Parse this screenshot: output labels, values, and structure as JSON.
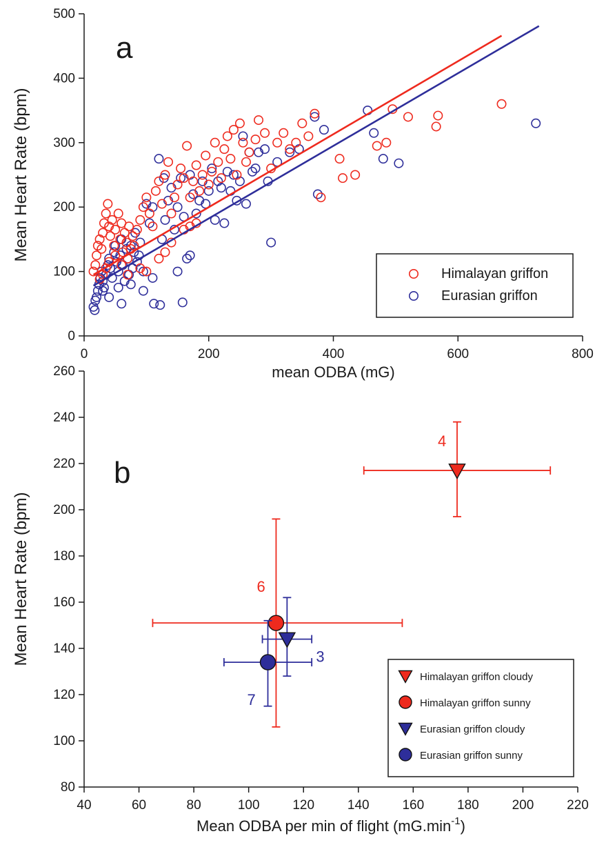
{
  "colors": {
    "red": "#ee2a1e",
    "blue": "#2e2e9a",
    "axis": "#1a1a1a"
  },
  "chart_data": [
    {
      "panel_label": "a",
      "type": "scatter",
      "xlabel": "mean ODBA (mG)",
      "ylabel": "Mean Heart Rate (bpm)",
      "xlim": [
        0,
        800
      ],
      "ylim": [
        0,
        500
      ],
      "xticks": [
        0,
        200,
        400,
        600,
        800
      ],
      "yticks": [
        0,
        100,
        200,
        300,
        400,
        500
      ],
      "legend": {
        "placement": "bottom-right"
      },
      "series": [
        {
          "name": "Himalayan griffon",
          "color": "#ee2a1e",
          "marker": "open-circle",
          "fit_line": {
            "x": [
              15,
              670
            ],
            "y": [
              95,
              466
            ]
          },
          "points": [
            [
              15,
              100
            ],
            [
              18,
              110
            ],
            [
              20,
              125
            ],
            [
              22,
              140
            ],
            [
              25,
              150
            ],
            [
              28,
              135
            ],
            [
              30,
              160
            ],
            [
              32,
              175
            ],
            [
              35,
              190
            ],
            [
              38,
              205
            ],
            [
              40,
              170
            ],
            [
              42,
              155
            ],
            [
              45,
              180
            ],
            [
              48,
              140
            ],
            [
              50,
              165
            ],
            [
              55,
              190
            ],
            [
              58,
              150
            ],
            [
              60,
              175
            ],
            [
              62,
              130
            ],
            [
              65,
              160
            ],
            [
              68,
              145
            ],
            [
              70,
              120
            ],
            [
              72,
              170
            ],
            [
              75,
              135
            ],
            [
              78,
              155
            ],
            [
              80,
              140
            ],
            [
              85,
              165
            ],
            [
              90,
              180
            ],
            [
              95,
              200
            ],
            [
              100,
              215
            ],
            [
              105,
              190
            ],
            [
              110,
              170
            ],
            [
              115,
              225
            ],
            [
              120,
              240
            ],
            [
              125,
              205
            ],
            [
              130,
              250
            ],
            [
              135,
              270
            ],
            [
              140,
              190
            ],
            [
              145,
              215
            ],
            [
              150,
              235
            ],
            [
              155,
              260
            ],
            [
              160,
              245
            ],
            [
              165,
              295
            ],
            [
              170,
              215
            ],
            [
              175,
              240
            ],
            [
              180,
              265
            ],
            [
              185,
              225
            ],
            [
              190,
              250
            ],
            [
              195,
              280
            ],
            [
              200,
              235
            ],
            [
              205,
              255
            ],
            [
              210,
              300
            ],
            [
              215,
              270
            ],
            [
              220,
              245
            ],
            [
              225,
              290
            ],
            [
              230,
              310
            ],
            [
              235,
              275
            ],
            [
              240,
              320
            ],
            [
              245,
              250
            ],
            [
              250,
              330
            ],
            [
              255,
              300
            ],
            [
              260,
              270
            ],
            [
              265,
              285
            ],
            [
              275,
              305
            ],
            [
              280,
              335
            ],
            [
              290,
              315
            ],
            [
              300,
              260
            ],
            [
              310,
              300
            ],
            [
              320,
              315
            ],
            [
              330,
              290
            ],
            [
              340,
              300
            ],
            [
              350,
              330
            ],
            [
              360,
              310
            ],
            [
              370,
              345
            ],
            [
              380,
              215
            ],
            [
              410,
              275
            ],
            [
              415,
              245
            ],
            [
              435,
              250
            ],
            [
              470,
              295
            ],
            [
              485,
              300
            ],
            [
              495,
              352
            ],
            [
              520,
              340
            ],
            [
              565,
              325
            ],
            [
              568,
              342
            ],
            [
              670,
              360
            ],
            [
              120,
              120
            ],
            [
              100,
              100
            ],
            [
              90,
              105
            ],
            [
              130,
              130
            ],
            [
              140,
              145
            ],
            [
              160,
              165
            ],
            [
              170,
              170
            ],
            [
              180,
              175
            ],
            [
              70,
              95
            ],
            [
              60,
              110
            ],
            [
              50,
              125
            ],
            [
              40,
              115
            ],
            [
              35,
              105
            ],
            [
              30,
              95
            ],
            [
              25,
              88
            ]
          ]
        },
        {
          "name": "Eurasian griffon",
          "color": "#2e2e9a",
          "marker": "open-circle",
          "fit_line": {
            "x": [
              15,
              730
            ],
            "y": [
              78,
              481
            ]
          },
          "points": [
            [
              15,
              45
            ],
            [
              17,
              40
            ],
            [
              18,
              55
            ],
            [
              20,
              60
            ],
            [
              22,
              70
            ],
            [
              24,
              80
            ],
            [
              26,
              90
            ],
            [
              28,
              100
            ],
            [
              30,
              85
            ],
            [
              32,
              75
            ],
            [
              35,
              95
            ],
            [
              38,
              110
            ],
            [
              40,
              120
            ],
            [
              42,
              105
            ],
            [
              45,
              90
            ],
            [
              48,
              130
            ],
            [
              50,
              140
            ],
            [
              52,
              115
            ],
            [
              55,
              100
            ],
            [
              58,
              125
            ],
            [
              60,
              150
            ],
            [
              62,
              110
            ],
            [
              65,
              85
            ],
            [
              68,
              135
            ],
            [
              70,
              120
            ],
            [
              72,
              95
            ],
            [
              75,
              140
            ],
            [
              78,
              105
            ],
            [
              80,
              130
            ],
            [
              82,
              160
            ],
            [
              85,
              115
            ],
            [
              88,
              125
            ],
            [
              90,
              145
            ],
            [
              95,
              100
            ],
            [
              100,
              205
            ],
            [
              105,
              175
            ],
            [
              110,
              200
            ],
            [
              112,
              50
            ],
            [
              120,
              275
            ],
            [
              122,
              48
            ],
            [
              125,
              150
            ],
            [
              128,
              245
            ],
            [
              130,
              180
            ],
            [
              135,
              210
            ],
            [
              140,
              230
            ],
            [
              145,
              165
            ],
            [
              150,
              200
            ],
            [
              155,
              245
            ],
            [
              158,
              52
            ],
            [
              160,
              185
            ],
            [
              165,
              120
            ],
            [
              170,
              250
            ],
            [
              175,
              220
            ],
            [
              180,
              190
            ],
            [
              185,
              210
            ],
            [
              190,
              240
            ],
            [
              195,
              205
            ],
            [
              200,
              225
            ],
            [
              205,
              260
            ],
            [
              210,
              180
            ],
            [
              215,
              240
            ],
            [
              220,
              230
            ],
            [
              225,
              175
            ],
            [
              230,
              255
            ],
            [
              235,
              225
            ],
            [
              240,
              250
            ],
            [
              245,
              210
            ],
            [
              250,
              240
            ],
            [
              255,
              310
            ],
            [
              260,
              205
            ],
            [
              265,
              285
            ],
            [
              270,
              255
            ],
            [
              275,
              260
            ],
            [
              280,
              285
            ],
            [
              290,
              290
            ],
            [
              295,
              240
            ],
            [
              300,
              145
            ],
            [
              310,
              270
            ],
            [
              330,
              285
            ],
            [
              345,
              290
            ],
            [
              370,
              340
            ],
            [
              375,
              220
            ],
            [
              385,
              320
            ],
            [
              455,
              350
            ],
            [
              465,
              315
            ],
            [
              480,
              275
            ],
            [
              505,
              268
            ],
            [
              725,
              330
            ],
            [
              60,
              50
            ],
            [
              40,
              60
            ],
            [
              30,
              70
            ],
            [
              55,
              75
            ],
            [
              75,
              80
            ],
            [
              95,
              70
            ],
            [
              110,
              90
            ],
            [
              150,
              100
            ],
            [
              170,
              125
            ]
          ]
        }
      ]
    },
    {
      "panel_label": "b",
      "type": "scatter",
      "xlabel": "Mean ODBA per min of flight (mG.min",
      "xlabel_sup": "-1",
      "xlabel_close": ")",
      "ylabel": "Mean Heart Rate (bpm)",
      "xlim": [
        40,
        220
      ],
      "ylim": [
        80,
        260
      ],
      "xticks": [
        40,
        60,
        80,
        100,
        120,
        140,
        160,
        180,
        200,
        220
      ],
      "yticks": [
        80,
        100,
        120,
        140,
        160,
        180,
        200,
        220,
        240,
        260
      ],
      "legend": {
        "placement": "bottom-right"
      },
      "series": [
        {
          "name": "Himalayan griffon cloudy",
          "color": "#ee2a1e",
          "marker": "filled-triangle-down",
          "x": 176,
          "y": 217,
          "x_err": [
            142,
            210
          ],
          "y_err": [
            197,
            238
          ],
          "n_label": "4"
        },
        {
          "name": "Himalayan griffon sunny",
          "color": "#ee2a1e",
          "marker": "filled-circle",
          "x": 110,
          "y": 151,
          "x_err": [
            65,
            156
          ],
          "y_err": [
            106,
            196
          ],
          "n_label": "6"
        },
        {
          "name": "Eurasian griffon cloudy",
          "color": "#2e2e9a",
          "marker": "filled-triangle-down",
          "x": 114,
          "y": 144,
          "x_err": [
            105,
            123
          ],
          "y_err": [
            128,
            162
          ],
          "n_label": "3"
        },
        {
          "name": "Eurasian griffon sunny",
          "color": "#2e2e9a",
          "marker": "filled-circle",
          "x": 107,
          "y": 134,
          "x_err": [
            91,
            123
          ],
          "y_err": [
            115,
            152
          ],
          "n_label": "7"
        }
      ]
    }
  ]
}
